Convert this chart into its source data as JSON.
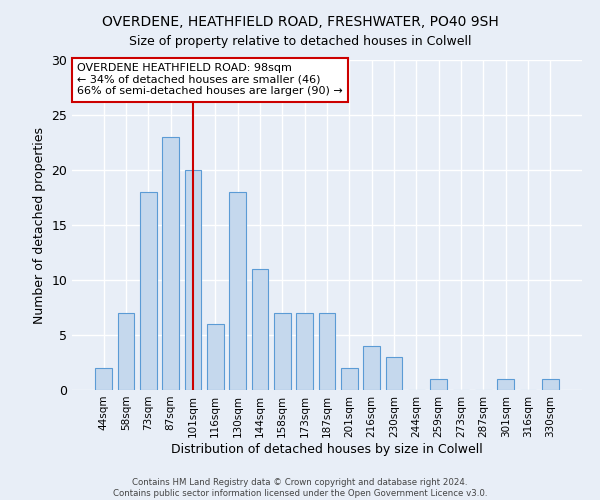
{
  "title": "OVERDENE, HEATHFIELD ROAD, FRESHWATER, PO40 9SH",
  "subtitle": "Size of property relative to detached houses in Colwell",
  "xlabel": "Distribution of detached houses by size in Colwell",
  "ylabel": "Number of detached properties",
  "bar_labels": [
    "44sqm",
    "58sqm",
    "73sqm",
    "87sqm",
    "101sqm",
    "116sqm",
    "130sqm",
    "144sqm",
    "158sqm",
    "173sqm",
    "187sqm",
    "201sqm",
    "216sqm",
    "230sqm",
    "244sqm",
    "259sqm",
    "273sqm",
    "287sqm",
    "301sqm",
    "316sqm",
    "330sqm"
  ],
  "bar_values": [
    2,
    7,
    18,
    23,
    20,
    6,
    18,
    11,
    7,
    7,
    7,
    2,
    4,
    3,
    0,
    1,
    0,
    0,
    1,
    0,
    1
  ],
  "bar_color": "#c5d8ed",
  "bar_edge_color": "#5b9bd5",
  "vline_x_index": 4,
  "vline_color": "#cc0000",
  "annotation_title": "OVERDENE HEATHFIELD ROAD: 98sqm",
  "annotation_line1": "← 34% of detached houses are smaller (46)",
  "annotation_line2": "66% of semi-detached houses are larger (90) →",
  "annotation_box_color": "#ffffff",
  "annotation_box_edge": "#cc0000",
  "ylim": [
    0,
    30
  ],
  "yticks": [
    0,
    5,
    10,
    15,
    20,
    25,
    30
  ],
  "footer1": "Contains HM Land Registry data © Crown copyright and database right 2024.",
  "footer2": "Contains public sector information licensed under the Open Government Licence v3.0.",
  "background_color": "#e8eef7",
  "grid_color": "#ffffff"
}
